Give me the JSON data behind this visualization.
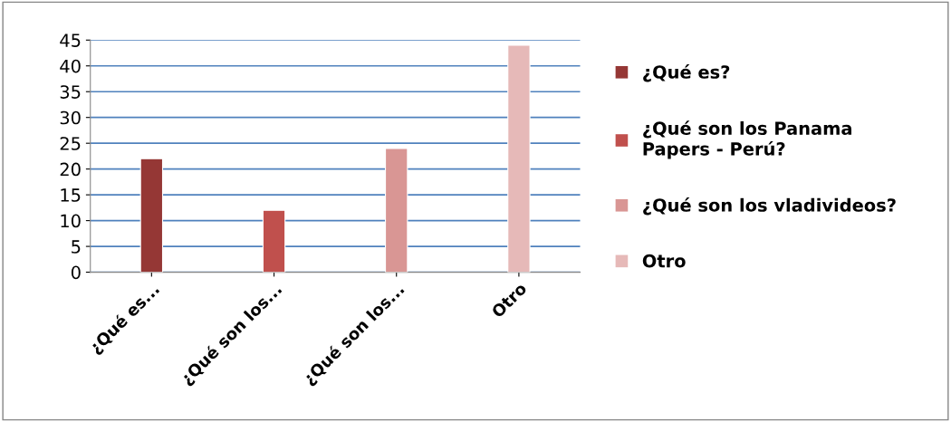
{
  "chart_data": {
    "type": "bar",
    "categories": [
      "¿Qué es...",
      "¿Qué son los...",
      "¿Qué son los...",
      "Otro"
    ],
    "series": [
      {
        "name": "¿Qué es?",
        "color": "#953735",
        "values": [
          22,
          null,
          null,
          null
        ]
      },
      {
        "name": "¿Qué son los Panama Papers - Perú?",
        "color": "#c0504d",
        "values": [
          null,
          12,
          null,
          null
        ]
      },
      {
        "name": "¿Qué son los vladivideos?",
        "color": "#d99694",
        "values": [
          null,
          null,
          24,
          null
        ]
      },
      {
        "name": "Otro",
        "color": "#e6b9b8",
        "values": [
          null,
          null,
          null,
          44
        ]
      }
    ],
    "ylim": [
      0,
      45
    ],
    "yticks": [
      0,
      5,
      10,
      15,
      20,
      25,
      30,
      35,
      40,
      45
    ],
    "grid": "y",
    "legend": "right"
  }
}
